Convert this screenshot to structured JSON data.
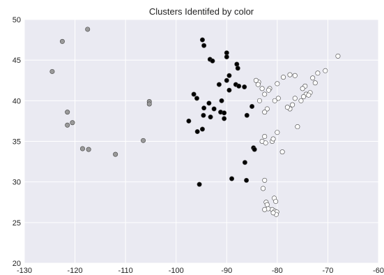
{
  "chart_data": {
    "type": "scatter",
    "title": "Clusters Identifed by color",
    "xlabel": "",
    "ylabel": "",
    "xlim": [
      -130,
      -60
    ],
    "ylim": [
      20,
      50
    ],
    "x_ticks": [
      -130,
      -120,
      -110,
      -100,
      -90,
      -80,
      -70,
      -60
    ],
    "y_ticks": [
      20,
      25,
      30,
      35,
      40,
      45,
      50
    ],
    "grid": true,
    "legend": "none",
    "colors": {
      "plot_background": "#eaeaf2",
      "grid": "#ffffff",
      "marker_edge": "#444444"
    },
    "series": [
      {
        "color": "#9a9a9a",
        "points": [
          [
            -117.5,
            48.8
          ],
          [
            -122.5,
            47.3
          ],
          [
            -124.5,
            43.6
          ],
          [
            -121.5,
            38.6
          ],
          [
            -120.5,
            37.3
          ],
          [
            -121.5,
            37.0
          ],
          [
            -105.3,
            39.9
          ],
          [
            -105.3,
            39.6
          ],
          [
            -118.5,
            34.1
          ],
          [
            -117.3,
            34.0
          ],
          [
            -112.0,
            33.4
          ],
          [
            -106.5,
            35.1
          ]
        ]
      },
      {
        "color": "#000000",
        "points": [
          [
            -94.8,
            47.5
          ],
          [
            -94.5,
            46.8
          ],
          [
            -93.3,
            45.1
          ],
          [
            -92.8,
            44.9
          ],
          [
            -90.0,
            45.9
          ],
          [
            -90.0,
            45.4
          ],
          [
            -88.0,
            44.5
          ],
          [
            -87.8,
            44.0
          ],
          [
            -89.5,
            43.1
          ],
          [
            -88.2,
            42.0
          ],
          [
            -87.6,
            41.8
          ],
          [
            -86.5,
            41.7
          ],
          [
            -90.0,
            42.5
          ],
          [
            -89.5,
            41.3
          ],
          [
            -91.5,
            42.0
          ],
          [
            -92.5,
            39.0
          ],
          [
            -91.2,
            38.6
          ],
          [
            -90.5,
            38.5
          ],
          [
            -90.5,
            37.8
          ],
          [
            -91.0,
            40.0
          ],
          [
            -93.5,
            39.7
          ],
          [
            -93.2,
            38.0
          ],
          [
            -94.5,
            39.1
          ],
          [
            -94.6,
            38.2
          ],
          [
            -96.5,
            40.8
          ],
          [
            -95.9,
            40.3
          ],
          [
            -97.5,
            37.5
          ],
          [
            -95.8,
            36.2
          ],
          [
            -94.8,
            36.5
          ],
          [
            -86.0,
            38.2
          ],
          [
            -85.0,
            39.3
          ],
          [
            -84.7,
            34.2
          ],
          [
            -84.5,
            34.0
          ],
          [
            -86.4,
            32.4
          ],
          [
            -86.1,
            30.2
          ],
          [
            -89.0,
            30.4
          ],
          [
            -95.4,
            29.7
          ]
        ]
      },
      {
        "color": "#ffffff",
        "points": [
          [
            -68.0,
            45.5
          ],
          [
            -70.5,
            43.7
          ],
          [
            -72.0,
            43.4
          ],
          [
            -76.5,
            43.1
          ],
          [
            -77.5,
            43.2
          ],
          [
            -73.0,
            42.8
          ],
          [
            -72.5,
            42.2
          ],
          [
            -74.5,
            41.8
          ],
          [
            -73.5,
            41.0
          ],
          [
            -75.0,
            41.5
          ],
          [
            -74.3,
            40.8
          ],
          [
            -73.8,
            40.7
          ],
          [
            -74.8,
            40.5
          ],
          [
            -75.3,
            40.0
          ],
          [
            -76.5,
            40.3
          ],
          [
            -77.0,
            39.5
          ],
          [
            -77.5,
            39.0
          ],
          [
            -78.0,
            39.2
          ],
          [
            -79.8,
            40.3
          ],
          [
            -80.5,
            40.0
          ],
          [
            -81.5,
            41.5
          ],
          [
            -82.5,
            40.8
          ],
          [
            -83.0,
            41.5
          ],
          [
            -83.7,
            42.3
          ],
          [
            -84.2,
            42.5
          ],
          [
            -83.8,
            42.0
          ],
          [
            -81.7,
            41.3
          ],
          [
            -80.0,
            42.1
          ],
          [
            -78.8,
            42.9
          ],
          [
            -80.0,
            36.1
          ],
          [
            -81.0,
            35.0
          ],
          [
            -80.8,
            35.3
          ],
          [
            -82.5,
            35.6
          ],
          [
            -83.0,
            35.0
          ],
          [
            -79.0,
            33.7
          ],
          [
            -82.3,
            34.8
          ],
          [
            -83.5,
            40.0
          ],
          [
            -82.0,
            39.0
          ],
          [
            -82.5,
            38.6
          ],
          [
            -76.0,
            36.8
          ],
          [
            -82.5,
            30.2
          ],
          [
            -82.8,
            29.2
          ],
          [
            -80.6,
            28.0
          ],
          [
            -80.3,
            27.6
          ],
          [
            -81.0,
            26.6
          ],
          [
            -80.5,
            26.4
          ],
          [
            -82.2,
            27.5
          ],
          [
            -82.0,
            27.2
          ],
          [
            -81.8,
            26.7
          ],
          [
            -82.5,
            26.6
          ],
          [
            -80.1,
            26.3
          ],
          [
            -80.2,
            26.0
          ],
          [
            -80.8,
            26.2
          ]
        ]
      }
    ]
  }
}
